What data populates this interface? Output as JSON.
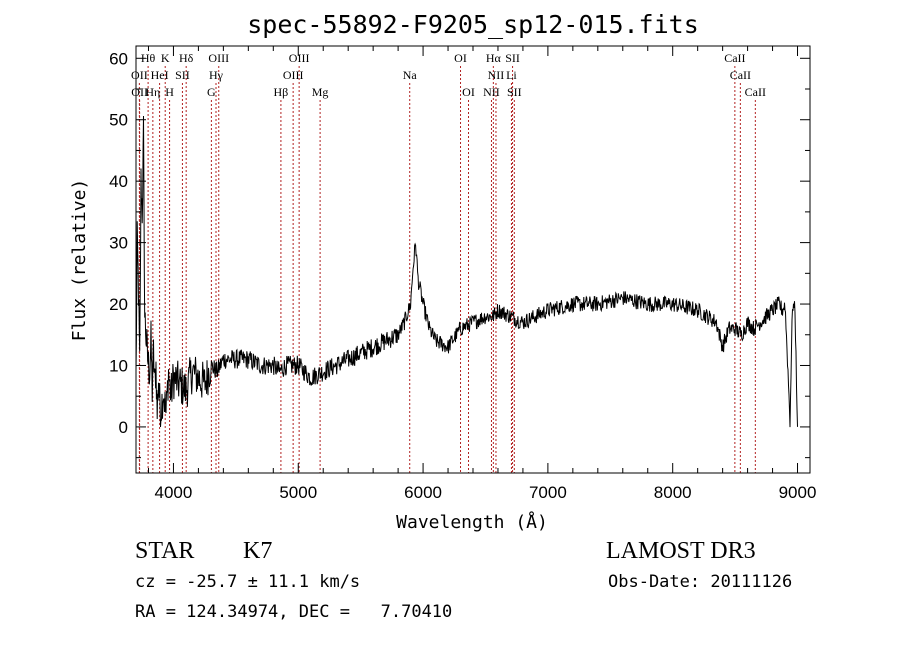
{
  "chart_data": {
    "type": "line",
    "title": "spec-55892-F9205_sp12-015.fits",
    "xlabel": "Wavelength (Å)",
    "ylabel": "Flux (relative)",
    "xlim": [
      3700,
      9100
    ],
    "ylim": [
      -7.5,
      62
    ],
    "xticks": [
      4000,
      5000,
      6000,
      7000,
      8000,
      9000
    ],
    "yticks": [
      0,
      10,
      20,
      30,
      40,
      50,
      60
    ],
    "grid": false,
    "series": [
      {
        "name": "flux",
        "x": [
          3700,
          3710,
          3720,
          3730,
          3740,
          3750,
          3760,
          3770,
          3780,
          3790,
          3800,
          3810,
          3820,
          3830,
          3840,
          3850,
          3860,
          3870,
          3880,
          3890,
          3900,
          3920,
          3940,
          3960,
          3980,
          4000,
          4050,
          4100,
          4150,
          4200,
          4250,
          4300,
          4350,
          4400,
          4500,
          4600,
          4700,
          4800,
          4850,
          4900,
          5000,
          5100,
          5200,
          5300,
          5400,
          5500,
          5600,
          5700,
          5800,
          5850,
          5900,
          5920,
          5940,
          5960,
          6000,
          6050,
          6100,
          6200,
          6300,
          6400,
          6500,
          6560,
          6600,
          6700,
          6800,
          6900,
          7000,
          7200,
          7400,
          7600,
          7800,
          8000,
          8200,
          8350,
          8400,
          8450,
          8500,
          8550,
          8600,
          8650,
          8700,
          8750,
          8800,
          8850,
          8880,
          8900,
          8920,
          8940,
          8960,
          8980,
          9000
        ],
        "y": [
          8,
          30,
          22,
          10,
          40,
          35,
          48,
          18,
          15,
          12,
          10,
          9,
          14,
          6,
          12,
          7,
          10,
          2,
          8,
          4,
          3,
          6,
          2,
          9,
          5,
          8,
          7,
          6,
          9,
          8,
          7,
          10,
          9,
          11,
          11,
          11,
          10,
          10,
          9,
          10,
          10,
          8,
          9,
          10,
          11,
          12,
          13,
          14,
          15,
          17,
          20,
          26,
          30,
          24,
          20,
          16,
          14,
          13,
          16,
          17,
          18,
          18,
          19,
          18,
          17,
          18,
          19,
          20,
          20,
          21,
          20,
          20,
          19,
          17,
          13,
          16,
          16,
          15,
          17,
          16,
          17,
          18,
          19,
          20,
          19,
          20,
          11,
          1,
          20,
          19,
          0
        ]
      }
    ],
    "lines": {
      "row1": [
        {
          "label": "Hθ",
          "x": 3797
        },
        {
          "label": "K",
          "x": 3934
        },
        {
          "label": "Hδ",
          "x": 4102
        },
        {
          "label": "OIII",
          "x": 4363
        },
        {
          "label": "OIII",
          "x": 5007
        },
        {
          "label": "OI",
          "x": 6300
        },
        {
          "label": "Hα",
          "x": 6563
        },
        {
          "label": "SII",
          "x": 6717
        },
        {
          "label": "CaII",
          "x": 8498
        }
      ],
      "row2": [
        {
          "label": "OII",
          "x": 3727
        },
        {
          "label": "HeI",
          "x": 3889
        },
        {
          "label": "SII",
          "x": 4072
        },
        {
          "label": "Hγ",
          "x": 4341
        },
        {
          "label": "OIII",
          "x": 4959
        },
        {
          "label": "Na",
          "x": 5893
        },
        {
          "label": "NII",
          "x": 6584
        },
        {
          "label": "Li",
          "x": 6708
        },
        {
          "label": "CaII",
          "x": 8542
        }
      ],
      "row3": [
        {
          "label": "OII",
          "x": 3729
        },
        {
          "label": "Hη",
          "x": 3835
        },
        {
          "label": "H",
          "x": 3969
        },
        {
          "label": "G",
          "x": 4304
        },
        {
          "label": "Hβ",
          "x": 4861
        },
        {
          "label": "Mg",
          "x": 5175
        },
        {
          "label": "OI",
          "x": 6364
        },
        {
          "label": "NII",
          "x": 6548
        },
        {
          "label": "SII",
          "x": 6731
        },
        {
          "label": "CaII",
          "x": 8662
        }
      ]
    },
    "line_color": "#b22222"
  },
  "info": {
    "object_class": "STAR",
    "subclass": "K7",
    "survey": "LAMOST DR3",
    "cz": "cz = -25.7 ± 11.1 km/s",
    "obs_date": "Obs-Date: 20111126",
    "coords": "RA = 124.34974, DEC =   7.70410"
  }
}
